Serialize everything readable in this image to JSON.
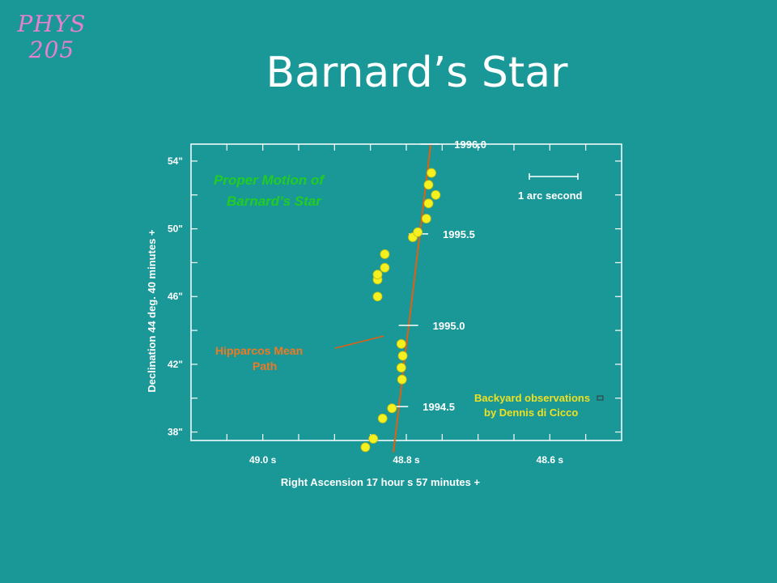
{
  "course_tag": [
    "PHYS",
    "205"
  ],
  "slide_title": "Barnard’s Star",
  "chart_data": {
    "type": "scatter",
    "title": "Proper Motion of Barnard’s Star",
    "title_lines": [
      "Proper Motion of",
      "Barnard’s Star"
    ],
    "xlabel": "Right Ascension 17 hour s 57 minutes +",
    "ylabel": "Declination 44 deg. 40 minutes +",
    "x_reversed": true,
    "xlim": [
      49.1,
      48.5
    ],
    "ylim": [
      37.5,
      55.0
    ],
    "x_ticks": [
      49.0,
      48.8,
      48.6
    ],
    "x_tick_labels": [
      "49.0 s",
      "48.8 s",
      "48.6 s"
    ],
    "y_ticks": [
      38,
      42,
      46,
      50,
      54
    ],
    "y_tick_labels": [
      "38\"",
      "42\"",
      "46\"",
      "50\"",
      "54\""
    ],
    "observations": [
      {
        "x": 48.857,
        "y": 37.1
      },
      {
        "x": 48.846,
        "y": 37.6
      },
      {
        "x": 48.833,
        "y": 38.8
      },
      {
        "x": 48.82,
        "y": 39.4
      },
      {
        "x": 48.806,
        "y": 41.1
      },
      {
        "x": 48.807,
        "y": 41.8
      },
      {
        "x": 48.805,
        "y": 42.5
      },
      {
        "x": 48.807,
        "y": 43.2
      },
      {
        "x": 48.84,
        "y": 46.0
      },
      {
        "x": 48.84,
        "y": 47.0
      },
      {
        "x": 48.84,
        "y": 47.3
      },
      {
        "x": 48.83,
        "y": 47.7
      },
      {
        "x": 48.83,
        "y": 48.5
      },
      {
        "x": 48.791,
        "y": 49.5
      },
      {
        "x": 48.784,
        "y": 49.8
      },
      {
        "x": 48.772,
        "y": 50.6
      },
      {
        "x": 48.769,
        "y": 51.5
      },
      {
        "x": 48.769,
        "y": 52.6
      },
      {
        "x": 48.759,
        "y": 52.0
      },
      {
        "x": 48.765,
        "y": 53.3
      }
    ],
    "mean_path": {
      "label_lines": [
        "Hipparcos Mean",
        "Path"
      ],
      "start": {
        "x": 48.818,
        "y": 36.8
      },
      "end": {
        "x": 48.766,
        "y": 55.0
      },
      "epochs": [
        {
          "label": "1994.5",
          "x": 48.811,
          "y": 39.5
        },
        {
          "label": "1995.0",
          "x": 48.797,
          "y": 44.3
        },
        {
          "label": "1995.5",
          "x": 48.783,
          "y": 49.7
        },
        {
          "label": "1996.0",
          "x": 48.767,
          "y": 55.0
        }
      ]
    },
    "scale_bar_label": "1 arc second",
    "credit_lines": [
      "Backyard observations",
      "by Dennis di Cicco"
    ],
    "colors": {
      "background": "#1a9898",
      "point": "#f5f020",
      "path": "#e06010",
      "title": "#22cc22",
      "credit": "#f0e020"
    }
  }
}
